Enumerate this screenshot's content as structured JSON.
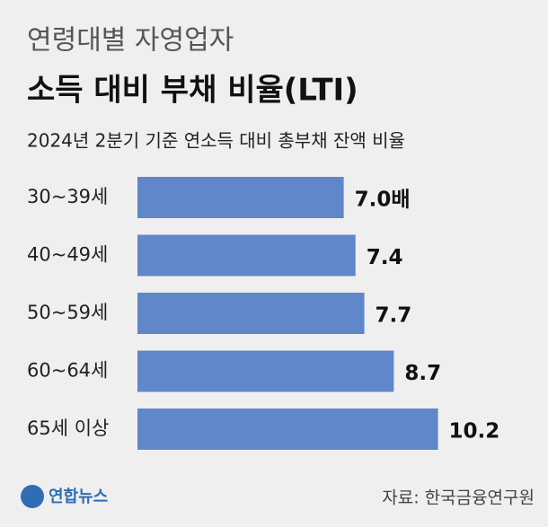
{
  "chart_data": {
    "type": "bar",
    "orientation": "horizontal",
    "title": "연령대별 자영업자",
    "subtitle_bold": "소득 대비 부채 비율(LTI)",
    "subtitle": "2024년 2분기 기준 연소득 대비 총부채 잔액 비율",
    "categories": [
      "30~39세",
      "40~49세",
      "50~59세",
      "60~64세",
      "65세 이상"
    ],
    "values": [
      7.0,
      7.4,
      7.7,
      8.7,
      10.2
    ],
    "value_labels": [
      "7.0배",
      "7.4",
      "7.7",
      "8.7",
      "10.2"
    ],
    "color": "#5f87c9",
    "source": "자료: 한국금융연구원",
    "logo": "연합뉴스"
  }
}
